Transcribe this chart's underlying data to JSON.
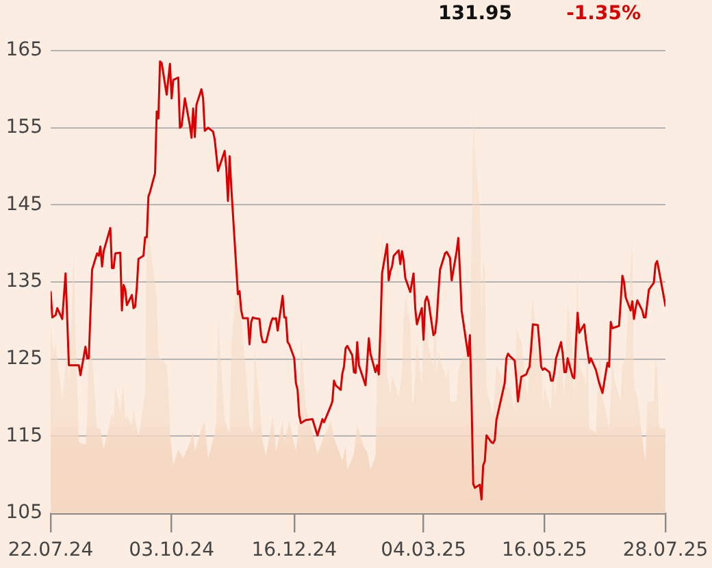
{
  "chart_data": {
    "type": "line",
    "annotations": [
      "131.95",
      "-1.35%"
    ],
    "xlim": [
      "2024-07-22",
      "2025-07-28"
    ],
    "xticks": [
      {
        "value": "2024-07-22",
        "label": "22.07.24"
      },
      {
        "value": "2024-10-03",
        "label": "03.10.24"
      },
      {
        "value": "2024-12-16",
        "label": "16.12.24"
      },
      {
        "value": "2025-03-04",
        "label": "04.03.25"
      },
      {
        "value": "2025-05-16",
        "label": "16.05.25"
      },
      {
        "value": "2025-07-28",
        "label": "28.07.25"
      }
    ],
    "ylim": [
      105,
      165
    ],
    "yticks": [
      105,
      115,
      125,
      135,
      145,
      155,
      165
    ],
    "grid": "y",
    "legend": false,
    "marker": "none",
    "series": [
      {
        "type": "area",
        "color": "#f5d8c2",
        "x": [
          "2024-07-22",
          "2024-07-23",
          "2024-07-24",
          "2024-07-25",
          "2024-07-29",
          "2024-07-31",
          "2024-08-01",
          "2024-08-02",
          "2024-08-05",
          "2024-08-06",
          "2024-08-07",
          "2024-08-08",
          "2024-08-12",
          "2024-08-13",
          "2024-08-14",
          "2024-08-16",
          "2024-08-19",
          "2024-08-21",
          "2024-08-23",
          "2024-08-28",
          "2024-08-29",
          "2024-08-30",
          "2024-09-02",
          "2024-09-04",
          "2024-09-05",
          "2024-09-06",
          "2024-09-09",
          "2024-09-10",
          "2024-09-13",
          "2024-09-17",
          "2024-09-18",
          "2024-09-19",
          "2024-09-20",
          "2024-09-24",
          "2024-09-25",
          "2024-09-30",
          "2024-10-01",
          "2024-10-02",
          "2024-10-04",
          "2024-10-07",
          "2024-10-10",
          "2024-10-14",
          "2024-10-16",
          "2024-10-17",
          "2024-10-21",
          "2024-10-23",
          "2024-10-25",
          "2024-10-29",
          "2024-10-30",
          "2024-10-31",
          "2024-11-04",
          "2024-11-07",
          "2024-11-08",
          "2024-11-12",
          "2024-11-13",
          "2024-11-14",
          "2024-11-18",
          "2024-11-19",
          "2024-11-21",
          "2024-11-22",
          "2024-11-25",
          "2024-11-27",
          "2024-11-29",
          "2024-12-03",
          "2024-12-05",
          "2024-12-09",
          "2024-12-10",
          "2024-12-13",
          "2024-12-17",
          "2024-12-19",
          "2024-12-20",
          "2024-12-23",
          "2024-12-30",
          "2025-01-07",
          "2025-01-09",
          "2025-01-14",
          "2025-01-16",
          "2025-01-17",
          "2025-01-21",
          "2025-01-23",
          "2025-01-27",
          "2025-01-29",
          "2025-01-31",
          "2025-02-03",
          "2025-02-04",
          "2025-02-05",
          "2025-02-06",
          "2025-02-07",
          "2025-02-10",
          "2025-02-12",
          "2025-02-13",
          "2025-02-17",
          "2025-02-19",
          "2025-02-20",
          "2025-02-21",
          "2025-02-24",
          "2025-02-25",
          "2025-02-26",
          "2025-02-28",
          "2025-03-03",
          "2025-03-04",
          "2025-03-05",
          "2025-03-06",
          "2025-03-07",
          "2025-03-10",
          "2025-03-11",
          "2025-03-12",
          "2025-03-13",
          "2025-03-14",
          "2025-03-18",
          "2025-03-19",
          "2025-03-20",
          "2025-03-24",
          "2025-03-25",
          "2025-03-27",
          "2025-03-28",
          "2025-04-01",
          "2025-04-02",
          "2025-04-03",
          "2025-04-04",
          "2025-04-07",
          "2025-04-08",
          "2025-04-09",
          "2025-04-10",
          "2025-04-11",
          "2025-04-15",
          "2025-04-17",
          "2025-04-23",
          "2025-04-25",
          "2025-04-28",
          "2025-04-29",
          "2025-05-02",
          "2025-05-05",
          "2025-05-06",
          "2025-05-07",
          "2025-05-09",
          "2025-05-12",
          "2025-05-14",
          "2025-05-15",
          "2025-05-16",
          "2025-05-20",
          "2025-05-21",
          "2025-05-22",
          "2025-05-26",
          "2025-05-28",
          "2025-05-30",
          "2025-06-02",
          "2025-06-03",
          "2025-06-05",
          "2025-06-06",
          "2025-06-09",
          "2025-06-10",
          "2025-06-11",
          "2025-06-12",
          "2025-06-16",
          "2025-06-18",
          "2025-06-20",
          "2025-06-24",
          "2025-06-26",
          "2025-06-27",
          "2025-07-01",
          "2025-07-02",
          "2025-07-04",
          "2025-07-08",
          "2025-07-09",
          "2025-07-11",
          "2025-07-15",
          "2025-07-16",
          "2025-07-17",
          "2025-07-21",
          "2025-07-22",
          "2025-07-23",
          "2025-07-24",
          "2025-07-25",
          "2025-07-28"
        ],
        "values": [
          129.6,
          127.2,
          126,
          127.2,
          119.5,
          124.2,
          127.2,
          121,
          139,
          128.4,
          121.3,
          114.2,
          113.9,
          117.1,
          126,
          125.4,
          116,
          116,
          113.3,
          118,
          117.1,
          121.3,
          118.3,
          121.9,
          117.1,
          117.7,
          116.5,
          118.6,
          114.8,
          120.6,
          142,
          146.2,
          140,
          133.1,
          125.4,
          124.2,
          121.3,
          115.4,
          111.2,
          113.3,
          112.1,
          114.2,
          115.7,
          113,
          116,
          116.8,
          112.1,
          115.4,
          117.1,
          130.2,
          117.1,
          115.4,
          127.2,
          136,
          136,
          130.2,
          120.1,
          116.5,
          115.4,
          126.6,
          119.5,
          114.2,
          112.4,
          117.7,
          113,
          117.1,
          114.2,
          117.1,
          113,
          117.1,
          127.8,
          118.9,
          112.7,
          117.1,
          114.8,
          111.8,
          113.6,
          110.6,
          112.7,
          116.5,
          113.6,
          113,
          110.6,
          112.4,
          123.6,
          127.2,
          127.2,
          142.3,
          123,
          120.1,
          123,
          120.1,
          123,
          130.1,
          133.1,
          129.6,
          119.5,
          119.5,
          127.2,
          121.3,
          129.6,
          127.2,
          130.1,
          126.6,
          124,
          137.5,
          122.5,
          126,
          124.8,
          122.5,
          124.2,
          119.5,
          119.5,
          123.6,
          124.8,
          125.4,
          125.4,
          142,
          158,
          152,
          145,
          130.1,
          137.8,
          136.7,
          121.3,
          117.7,
          124.2,
          121.3,
          121.3,
          118.3,
          129,
          127.2,
          121.3,
          120.1,
          127.2,
          133.1,
          125.4,
          126.6,
          118.9,
          121.3,
          118.3,
          127.2,
          120.1,
          125.4,
          120.1,
          132.5,
          125.4,
          119.5,
          137.5,
          124.2,
          122.5,
          121.3,
          129,
          116,
          115.4,
          126,
          120.1,
          116,
          124.8,
          122.5,
          119.5,
          124.2,
          125.4,
          140.8,
          121.3,
          120.1,
          113,
          111.8,
          119.5,
          119.5,
          125.4,
          123.6,
          116.5,
          116,
          116
        ]
      },
      {
        "type": "line",
        "color": "#d80000",
        "x": [
          "2024-07-22",
          "2024-07-23",
          "2024-07-25",
          "2024-07-26",
          "2024-07-29",
          "2024-07-31",
          "2024-08-02",
          "2024-08-08",
          "2024-08-09",
          "2024-08-12",
          "2024-08-13",
          "2024-08-14",
          "2024-08-16",
          "2024-08-19",
          "2024-08-20",
          "2024-08-21",
          "2024-08-22",
          "2024-08-23",
          "2024-08-27",
          "2024-08-28",
          "2024-08-29",
          "2024-08-30",
          "2024-09-02",
          "2024-09-03",
          "2024-09-04",
          "2024-09-05",
          "2024-09-06",
          "2024-09-09",
          "2024-09-10",
          "2024-09-11",
          "2024-09-12",
          "2024-09-13",
          "2024-09-16",
          "2024-09-17",
          "2024-09-18",
          "2024-09-19",
          "2024-09-20",
          "2024-09-23",
          "2024-09-24",
          "2024-09-25",
          "2024-09-26",
          "2024-09-27",
          "2024-09-30",
          "2024-10-02",
          "2024-10-03",
          "2024-10-04",
          "2024-10-07",
          "2024-10-08",
          "2024-10-09",
          "2024-10-11",
          "2024-10-14",
          "2024-10-15",
          "2024-10-16",
          "2024-10-17",
          "2024-10-18",
          "2024-10-21",
          "2024-10-22",
          "2024-10-23",
          "2024-10-25",
          "2024-10-28",
          "2024-10-29",
          "2024-10-31",
          "2024-11-04",
          "2024-11-05",
          "2024-11-06",
          "2024-11-07",
          "2024-11-08",
          "2024-11-12",
          "2024-11-13",
          "2024-11-14",
          "2024-11-15",
          "2024-11-18",
          "2024-11-19",
          "2024-11-20",
          "2024-11-21",
          "2024-11-22",
          "2024-11-25",
          "2024-11-26",
          "2024-11-27",
          "2024-11-29",
          "2024-12-02",
          "2024-12-03",
          "2024-12-04",
          "2024-12-05",
          "2024-12-06",
          "2024-12-09",
          "2024-12-10",
          "2024-12-11",
          "2024-12-12",
          "2024-12-13",
          "2024-12-16",
          "2024-12-17",
          "2024-12-18",
          "2024-12-19",
          "2024-12-20",
          "2024-12-23",
          "2024-12-27",
          "2024-12-30",
          "2025-01-02",
          "2025-01-03",
          "2025-01-07",
          "2025-01-08",
          "2025-01-09",
          "2025-01-10",
          "2025-01-13",
          "2025-01-14",
          "2025-01-15",
          "2025-01-16",
          "2025-01-17",
          "2025-01-20",
          "2025-01-21",
          "2025-01-22",
          "2025-01-23",
          "2025-01-24",
          "2025-01-28",
          "2025-01-29",
          "2025-01-30",
          "2025-01-31",
          "2025-02-03",
          "2025-02-04",
          "2025-02-05",
          "2025-02-06",
          "2025-02-07",
          "2025-02-10",
          "2025-02-11",
          "2025-02-12",
          "2025-02-13",
          "2025-02-14",
          "2025-02-17",
          "2025-02-18",
          "2025-02-19",
          "2025-02-20",
          "2025-02-21",
          "2025-02-24",
          "2025-02-26",
          "2025-02-27",
          "2025-02-28",
          "2025-03-03",
          "2025-03-04",
          "2025-03-05",
          "2025-03-06",
          "2025-03-07",
          "2025-03-10",
          "2025-03-11",
          "2025-03-12",
          "2025-03-13",
          "2025-03-14",
          "2025-03-17",
          "2025-03-18",
          "2025-03-20",
          "2025-03-21",
          "2025-03-24",
          "2025-03-25",
          "2025-03-26",
          "2025-03-27",
          "2025-03-31",
          "2025-04-01",
          "2025-04-02",
          "2025-04-03",
          "2025-04-04",
          "2025-04-07",
          "2025-04-08",
          "2025-04-09",
          "2025-04-10",
          "2025-04-11",
          "2025-04-14",
          "2025-04-15",
          "2025-04-16",
          "2025-04-17",
          "2025-04-22",
          "2025-04-23",
          "2025-04-24",
          "2025-04-25",
          "2025-04-28",
          "2025-04-29",
          "2025-04-30",
          "2025-05-02",
          "2025-05-05",
          "2025-05-06",
          "2025-05-07",
          "2025-05-08",
          "2025-05-09",
          "2025-05-12",
          "2025-05-13",
          "2025-05-14",
          "2025-05-15",
          "2025-05-16",
          "2025-05-19",
          "2025-05-20",
          "2025-05-21",
          "2025-05-22",
          "2025-05-23",
          "2025-05-26",
          "2025-05-27",
          "2025-05-28",
          "2025-05-29",
          "2025-05-30",
          "2025-06-02",
          "2025-06-03",
          "2025-06-04",
          "2025-06-05",
          "2025-06-06",
          "2025-06-09",
          "2025-06-10",
          "2025-06-12",
          "2025-06-13",
          "2025-06-16",
          "2025-06-18",
          "2025-06-20",
          "2025-06-23",
          "2025-06-24",
          "2025-06-25",
          "2025-06-26",
          "2025-06-30",
          "2025-07-01",
          "2025-07-02",
          "2025-07-03",
          "2025-07-04",
          "2025-07-07",
          "2025-07-08",
          "2025-07-09",
          "2025-07-10",
          "2025-07-11",
          "2025-07-14",
          "2025-07-15",
          "2025-07-16",
          "2025-07-17",
          "2025-07-18",
          "2025-07-21",
          "2025-07-22",
          "2025-07-23",
          "2025-07-24",
          "2025-07-28"
        ],
        "values": [
          133.7,
          130.4,
          130.7,
          131.6,
          130.2,
          136.1,
          124.2,
          124.2,
          122.9,
          126.6,
          125.1,
          125.1,
          136.6,
          138.7,
          138.4,
          139.6,
          137,
          139,
          142,
          136.8,
          136.8,
          138.7,
          138.8,
          131.3,
          134.6,
          134,
          132,
          133.3,
          131.6,
          131.8,
          134.3,
          138,
          138.4,
          140.8,
          140.8,
          146.1,
          146.7,
          149.1,
          157.1,
          156.2,
          163.6,
          163.4,
          159.3,
          163.3,
          158.8,
          161.2,
          161.5,
          155,
          155.2,
          158.8,
          155.3,
          153.7,
          157.5,
          153.8,
          158,
          160,
          158.8,
          154.6,
          155,
          154.5,
          153.5,
          149.4,
          152,
          149.7,
          145.5,
          151.3,
          147.3,
          133.4,
          133.8,
          131.3,
          130.3,
          130.3,
          126.9,
          129.8,
          130.4,
          130.3,
          130.2,
          128.1,
          127.2,
          127.2,
          129.8,
          130.3,
          130.2,
          130.3,
          128.7,
          133.2,
          130.4,
          130.4,
          127.2,
          126.9,
          125.1,
          121.9,
          121,
          117.7,
          116.7,
          117.1,
          117.2,
          115.1,
          117.2,
          116.8,
          118.9,
          119.5,
          122.2,
          121.6,
          121,
          123.1,
          124,
          126.4,
          126.7,
          125.5,
          123.3,
          123.2,
          127.2,
          124.2,
          121.6,
          124.5,
          127.7,
          125.7,
          123.3,
          124.2,
          123,
          129,
          136.1,
          139.9,
          135.2,
          136.4,
          137,
          138.4,
          139.1,
          137.3,
          139,
          137.8,
          135.5,
          133.7,
          136.1,
          131.6,
          129.5,
          131.6,
          127.5,
          132.5,
          133.1,
          132.5,
          128.1,
          128.4,
          130.2,
          133.7,
          136.6,
          138.7,
          138.9,
          138.1,
          135.2,
          139,
          140.7,
          136.3,
          131.3,
          125.4,
          128.1,
          119.5,
          108.8,
          108.3,
          108.7,
          106.8,
          111.2,
          111.8,
          115.1,
          114.2,
          114.1,
          114.5,
          117.1,
          121.9,
          125.1,
          125.7,
          125.4,
          124.8,
          122.5,
          119.5,
          122.7,
          123,
          123.6,
          124,
          126.6,
          129.5,
          129.4,
          126.9,
          124,
          123.6,
          123.8,
          123.3,
          122.2,
          122.2,
          123.3,
          125.1,
          127.2,
          125.7,
          123.3,
          123.3,
          125.1,
          122.7,
          122.5,
          127.2,
          131,
          128.4,
          129.5,
          127.5,
          124.5,
          125.1,
          123.6,
          121.9,
          120.6,
          124.5,
          124,
          129.8,
          129,
          129.3,
          132.5,
          135.8,
          135,
          133,
          131.3,
          132.5,
          130.2,
          131.6,
          132.6,
          131.3,
          130.4,
          130.4,
          132.2,
          134,
          134.9,
          137.3,
          137.7,
          136.6,
          131.9
        ]
      }
    ]
  }
}
